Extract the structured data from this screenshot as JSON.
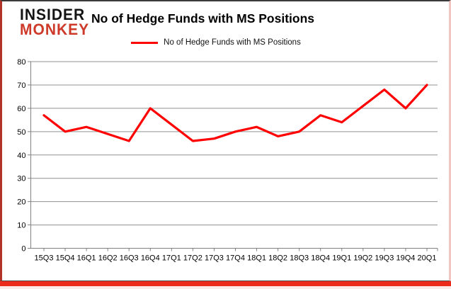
{
  "logo": {
    "line1": "INSIDER",
    "line2": "MONKEY"
  },
  "header": {
    "title": "No of Hedge Funds with MS Positions"
  },
  "legend": {
    "label": "No of Hedge Funds with MS Positions",
    "line_color": "#ff0000"
  },
  "colors": {
    "series_line": "#ff0000",
    "gridline": "#909090",
    "axis": "#808080",
    "tick_text": "#000000",
    "frame_bottom_red": "#ec2a1c"
  },
  "chart_data": {
    "type": "line",
    "title": "No of Hedge Funds with MS Positions",
    "categories": [
      "15Q3",
      "15Q4",
      "16Q1",
      "16Q2",
      "16Q3",
      "16Q4",
      "17Q1",
      "17Q2",
      "17Q3",
      "17Q4",
      "18Q1",
      "18Q2",
      "18Q3",
      "18Q4",
      "19Q1",
      "19Q2",
      "19Q3",
      "19Q4",
      "20Q1"
    ],
    "series": [
      {
        "name": "No of Hedge Funds with MS Positions",
        "color": "#ff0000",
        "values": [
          57,
          50,
          52,
          49,
          46,
          60,
          53,
          46,
          47,
          50,
          52,
          48,
          50,
          57,
          54,
          61,
          68,
          60,
          70
        ]
      }
    ],
    "xlabel": "",
    "ylabel": "",
    "ylim": [
      0,
      80
    ],
    "yticks": [
      0,
      10,
      20,
      30,
      40,
      50,
      60,
      70,
      80
    ],
    "grid": true,
    "legend_position": "top-center"
  }
}
